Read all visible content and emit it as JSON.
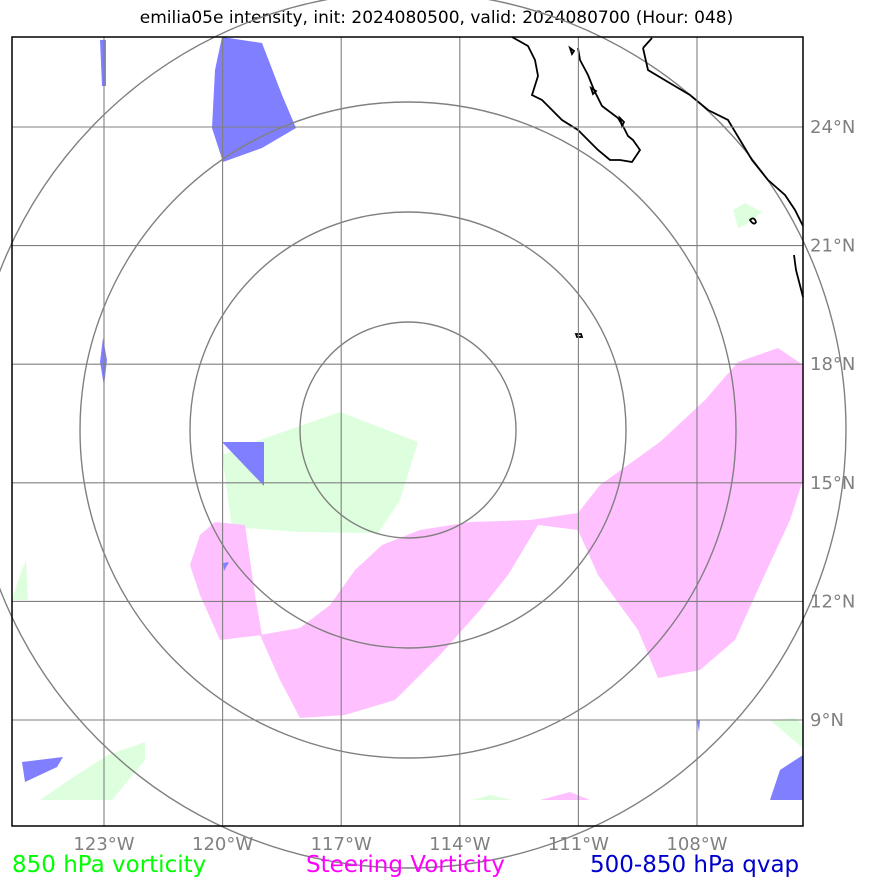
{
  "title": "emilia05e intensity, init: 2024080500, valid: 2024080700 (Hour: 048)",
  "map": {
    "lon_ticks": [
      "123°W",
      "120°W",
      "117°W",
      "114°W",
      "111°W",
      "108°W"
    ],
    "lat_ticks": [
      "24°N",
      "21°N",
      "18°N",
      "15°N",
      "12°N",
      "9°N"
    ],
    "lon_range": [
      -125.7,
      -105.8
    ],
    "lat_range": [
      6.3,
      26.3
    ],
    "grid": true,
    "range_rings": 4,
    "center": {
      "lon": -115.3,
      "lat": 15.6
    }
  },
  "legend": [
    {
      "label": "850 hPa vorticity",
      "color": "#00ff00",
      "fill": "#ddffdd"
    },
    {
      "label": "Steering Vorticity",
      "color": "#ff00ff",
      "fill": "#ffc0ff"
    },
    {
      "label": "500-850 hPa qvap",
      "color": "#0000cc",
      "fill": "#7f7fff"
    }
  ]
}
